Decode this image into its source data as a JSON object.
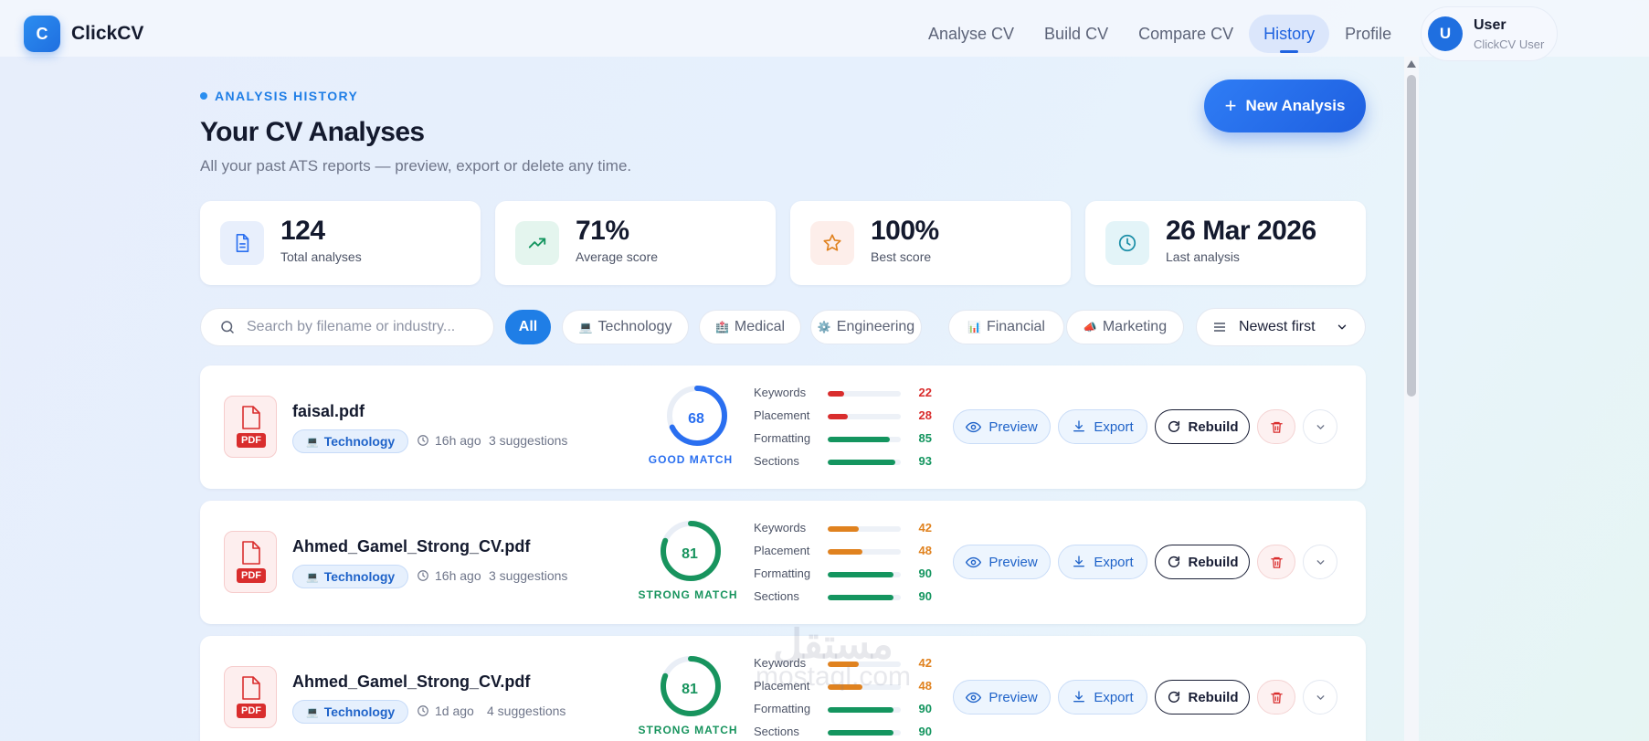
{
  "app": {
    "logo_letter": "C",
    "name": "ClickCV"
  },
  "nav": [
    {
      "label": "Analyse CV",
      "active": false
    },
    {
      "label": "Build CV",
      "active": false
    },
    {
      "label": "Compare CV",
      "active": false
    },
    {
      "label": "History",
      "active": true
    },
    {
      "label": "Profile",
      "active": false
    }
  ],
  "user": {
    "initial": "U",
    "name": "User",
    "subtitle": "ClickCV User"
  },
  "header": {
    "eyebrow": "ANALYSIS HISTORY",
    "title": "Your CV Analyses",
    "subtitle": "All your past ATS reports — preview, export or delete any time.",
    "new_button": "New Analysis"
  },
  "stats": [
    {
      "value": "124",
      "label": "Total analyses",
      "icon": "document-icon"
    },
    {
      "value": "71%",
      "label": "Average score",
      "icon": "trending-up-icon"
    },
    {
      "value": "100%",
      "label": "Best score",
      "icon": "star-icon"
    },
    {
      "value": "26 Mar 2026",
      "label": "Last analysis",
      "icon": "clock-icon"
    }
  ],
  "filters": {
    "search_placeholder": "Search by filename or industry...",
    "chips": [
      {
        "label": "All",
        "emoji": "",
        "active": true
      },
      {
        "label": "Technology",
        "emoji": "💻",
        "active": false
      },
      {
        "label": "Medical",
        "emoji": "🏥",
        "active": false
      },
      {
        "label": "Engineering",
        "emoji": "⚙️",
        "active": false
      },
      {
        "label": "Financial",
        "emoji": "📊",
        "active": false
      },
      {
        "label": "Marketing",
        "emoji": "📣",
        "active": false
      }
    ],
    "sort_value": "Newest first"
  },
  "rows": [
    {
      "file": "faisal.pdf",
      "badge": "PDF",
      "tag": "Technology",
      "tag_emoji": "💻",
      "time": "16h ago",
      "suggestions": "3 suggestions",
      "score": "68",
      "score_value": 68,
      "match": "GOOD MATCH",
      "metrics": [
        {
          "label": "Keywords",
          "value": "22",
          "fill": 0.22
        },
        {
          "label": "Placement",
          "value": "28",
          "fill": 0.28
        },
        {
          "label": "Formatting",
          "value": "85",
          "fill": 0.85
        },
        {
          "label": "Sections",
          "value": "93",
          "fill": 0.93
        }
      ]
    },
    {
      "file": "Ahmed_Gamel_Strong_CV.pdf",
      "badge": "PDF",
      "tag": "Technology",
      "tag_emoji": "💻",
      "time": "16h ago",
      "suggestions": "3 suggestions",
      "score": "81",
      "score_value": 81,
      "match": "STRONG MATCH",
      "metrics": [
        {
          "label": "Keywords",
          "value": "42",
          "fill": 0.42
        },
        {
          "label": "Placement",
          "value": "48",
          "fill": 0.48
        },
        {
          "label": "Formatting",
          "value": "90",
          "fill": 0.9
        },
        {
          "label": "Sections",
          "value": "90",
          "fill": 0.9
        }
      ]
    },
    {
      "file": "Ahmed_Gamel_Strong_CV.pdf",
      "badge": "PDF",
      "tag": "Technology",
      "tag_emoji": "💻",
      "time": "1d ago",
      "suggestions": "4 suggestions",
      "score": "81",
      "score_value": 81,
      "match": "STRONG MATCH",
      "metrics": [
        {
          "label": "Keywords",
          "value": "42",
          "fill": 0.42
        },
        {
          "label": "Placement",
          "value": "48",
          "fill": 0.48
        },
        {
          "label": "Formatting",
          "value": "90",
          "fill": 0.9
        },
        {
          "label": "Sections",
          "value": "90",
          "fill": 0.9
        }
      ]
    }
  ],
  "actions": {
    "preview": "Preview",
    "export": "Export",
    "rebuild": "Rebuild"
  },
  "watermark": {
    "arabic": "مستقل",
    "latin": "mostaql.com"
  },
  "colors": {
    "primary": "#1f7ee6",
    "good": "#2a6ff0",
    "strong": "#18945e",
    "low": "#d92d2d",
    "mid": "#e0821f",
    "high": "#14955f"
  }
}
